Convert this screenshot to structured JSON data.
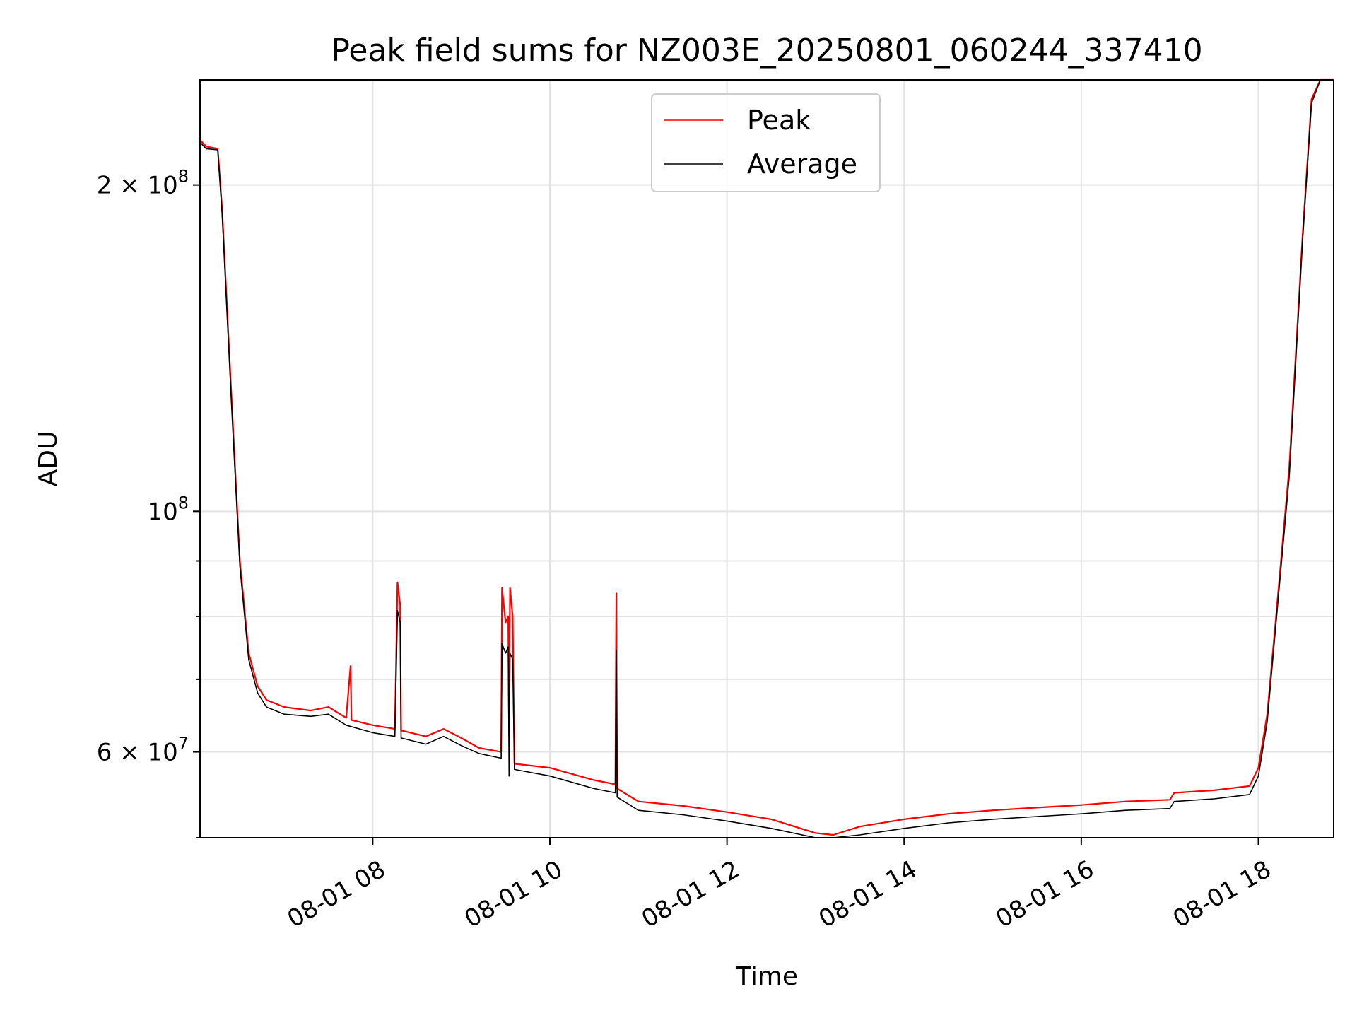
{
  "chart_data": {
    "type": "line",
    "title": "Peak field sums for NZ003E_20250801_060244_337410",
    "xlabel": "Time",
    "ylabel": "ADU",
    "x_unit": "hours of 2025-08-01",
    "xlim": [
      6.05,
      18.85
    ],
    "ylim": [
      50000000,
      250000000
    ],
    "y_scale": "log",
    "grid": true,
    "legend_position": "top-center",
    "x_ticks": [
      {
        "value": 8,
        "label": "08-01 08"
      },
      {
        "value": 10,
        "label": "08-01 10"
      },
      {
        "value": 12,
        "label": "08-01 12"
      },
      {
        "value": 14,
        "label": "08-01 14"
      },
      {
        "value": 16,
        "label": "08-01 16"
      },
      {
        "value": 18,
        "label": "08-01 18"
      }
    ],
    "y_ticks": [
      {
        "value": 60000000,
        "label_base": "6 × 10",
        "label_exp": "7"
      },
      {
        "value": 100000000,
        "label_base": "10",
        "label_exp": "8"
      },
      {
        "value": 200000000,
        "label_base": "2 × 10",
        "label_exp": "8"
      }
    ],
    "y_minor_ticks": [
      50000000,
      70000000,
      80000000,
      90000000
    ],
    "series": [
      {
        "name": "Peak",
        "color": "#ff0000",
        "points": [
          [
            6.05,
            220000000
          ],
          [
            6.12,
            217000000
          ],
          [
            6.25,
            216000000
          ],
          [
            6.3,
            190000000
          ],
          [
            6.4,
            130000000
          ],
          [
            6.5,
            90000000
          ],
          [
            6.6,
            74000000
          ],
          [
            6.7,
            69000000
          ],
          [
            6.8,
            67000000
          ],
          [
            7.0,
            66000000
          ],
          [
            7.3,
            65500000
          ],
          [
            7.5,
            66000000
          ],
          [
            7.7,
            64500000
          ],
          [
            7.75,
            72000000
          ],
          [
            7.76,
            64200000
          ],
          [
            8.0,
            63500000
          ],
          [
            8.25,
            63000000
          ],
          [
            8.28,
            86000000
          ],
          [
            8.31,
            82000000
          ],
          [
            8.32,
            62800000
          ],
          [
            8.6,
            62000000
          ],
          [
            8.8,
            63000000
          ],
          [
            9.0,
            61800000
          ],
          [
            9.2,
            60500000
          ],
          [
            9.45,
            60000000
          ],
          [
            9.46,
            85000000
          ],
          [
            9.5,
            79000000
          ],
          [
            9.53,
            80000000
          ],
          [
            9.54,
            62000000
          ],
          [
            9.55,
            85000000
          ],
          [
            9.58,
            80000000
          ],
          [
            9.6,
            58500000
          ],
          [
            10.0,
            58000000
          ],
          [
            10.5,
            56500000
          ],
          [
            10.74,
            56000000
          ],
          [
            10.75,
            84000000
          ],
          [
            10.76,
            55500000
          ],
          [
            11.0,
            54000000
          ],
          [
            11.5,
            53500000
          ],
          [
            12.0,
            52800000
          ],
          [
            12.5,
            52000000
          ],
          [
            13.0,
            50500000
          ],
          [
            13.2,
            50300000
          ],
          [
            13.5,
            51200000
          ],
          [
            14.0,
            52000000
          ],
          [
            14.5,
            52600000
          ],
          [
            15.0,
            53000000
          ],
          [
            15.5,
            53300000
          ],
          [
            16.0,
            53600000
          ],
          [
            16.5,
            54000000
          ],
          [
            17.0,
            54200000
          ],
          [
            17.05,
            55000000
          ],
          [
            17.5,
            55300000
          ],
          [
            17.9,
            55800000
          ],
          [
            18.0,
            58000000
          ],
          [
            18.1,
            65000000
          ],
          [
            18.2,
            80000000
          ],
          [
            18.35,
            110000000
          ],
          [
            18.5,
            180000000
          ],
          [
            18.6,
            240000000
          ],
          [
            18.7,
            250000000
          ],
          [
            18.85,
            250000000
          ]
        ]
      },
      {
        "name": "Average",
        "color": "#000000",
        "points": [
          [
            6.05,
            219000000
          ],
          [
            6.12,
            216000000
          ],
          [
            6.25,
            215500000
          ],
          [
            6.3,
            188000000
          ],
          [
            6.4,
            128000000
          ],
          [
            6.5,
            89000000
          ],
          [
            6.6,
            73000000
          ],
          [
            6.7,
            68000000
          ],
          [
            6.8,
            66000000
          ],
          [
            7.0,
            65000000
          ],
          [
            7.3,
            64700000
          ],
          [
            7.5,
            65000000
          ],
          [
            7.7,
            63500000
          ],
          [
            8.0,
            62500000
          ],
          [
            8.25,
            62000000
          ],
          [
            8.28,
            81000000
          ],
          [
            8.31,
            79000000
          ],
          [
            8.32,
            61800000
          ],
          [
            8.6,
            61000000
          ],
          [
            8.8,
            62000000
          ],
          [
            9.0,
            60800000
          ],
          [
            9.2,
            59800000
          ],
          [
            9.45,
            59200000
          ],
          [
            9.46,
            75500000
          ],
          [
            9.5,
            74000000
          ],
          [
            9.53,
            75000000
          ],
          [
            9.54,
            57000000
          ],
          [
            9.55,
            74000000
          ],
          [
            9.58,
            73000000
          ],
          [
            9.6,
            57800000
          ],
          [
            10.0,
            57000000
          ],
          [
            10.5,
            55500000
          ],
          [
            10.74,
            55000000
          ],
          [
            10.75,
            74500000
          ],
          [
            10.76,
            54500000
          ],
          [
            11.0,
            53000000
          ],
          [
            11.5,
            52500000
          ],
          [
            12.0,
            51800000
          ],
          [
            12.5,
            51000000
          ],
          [
            13.0,
            49800000
          ],
          [
            13.2,
            49700000
          ],
          [
            13.5,
            50300000
          ],
          [
            14.0,
            51000000
          ],
          [
            14.5,
            51600000
          ],
          [
            15.0,
            52000000
          ],
          [
            15.5,
            52300000
          ],
          [
            16.0,
            52600000
          ],
          [
            16.5,
            53000000
          ],
          [
            17.0,
            53200000
          ],
          [
            17.05,
            54000000
          ],
          [
            17.5,
            54300000
          ],
          [
            17.9,
            54800000
          ],
          [
            18.0,
            57000000
          ],
          [
            18.1,
            64000000
          ],
          [
            18.2,
            79000000
          ],
          [
            18.35,
            108000000
          ],
          [
            18.5,
            178000000
          ],
          [
            18.6,
            238000000
          ],
          [
            18.7,
            250000000
          ],
          [
            18.85,
            250000000
          ]
        ]
      }
    ]
  }
}
